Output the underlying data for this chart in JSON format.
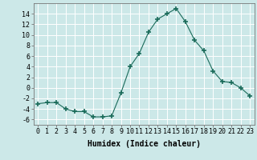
{
  "x": [
    0,
    1,
    2,
    3,
    4,
    5,
    6,
    7,
    8,
    9,
    10,
    11,
    12,
    13,
    14,
    15,
    16,
    17,
    18,
    19,
    20,
    21,
    22,
    23
  ],
  "y": [
    -3,
    -2.8,
    -2.8,
    -4,
    -4.5,
    -4.5,
    -5.5,
    -5.5,
    -5.3,
    -1,
    4,
    6.5,
    10.5,
    13,
    14,
    15,
    12.5,
    9,
    7,
    3.2,
    1.2,
    1,
    0,
    -1.5
  ],
  "line_color": "#1a6b5a",
  "marker": "+",
  "marker_size": 4,
  "bg_color": "#cce8e8",
  "grid_color": "#ffffff",
  "xlabel": "Humidex (Indice chaleur)",
  "xlabel_fontsize": 7,
  "tick_fontsize": 6,
  "ylim": [
    -7,
    16
  ],
  "xlim": [
    -0.5,
    23.5
  ],
  "yticks": [
    -6,
    -4,
    -2,
    0,
    2,
    4,
    6,
    8,
    10,
    12,
    14
  ],
  "xticks": [
    0,
    1,
    2,
    3,
    4,
    5,
    6,
    7,
    8,
    9,
    10,
    11,
    12,
    13,
    14,
    15,
    16,
    17,
    18,
    19,
    20,
    21,
    22,
    23
  ]
}
